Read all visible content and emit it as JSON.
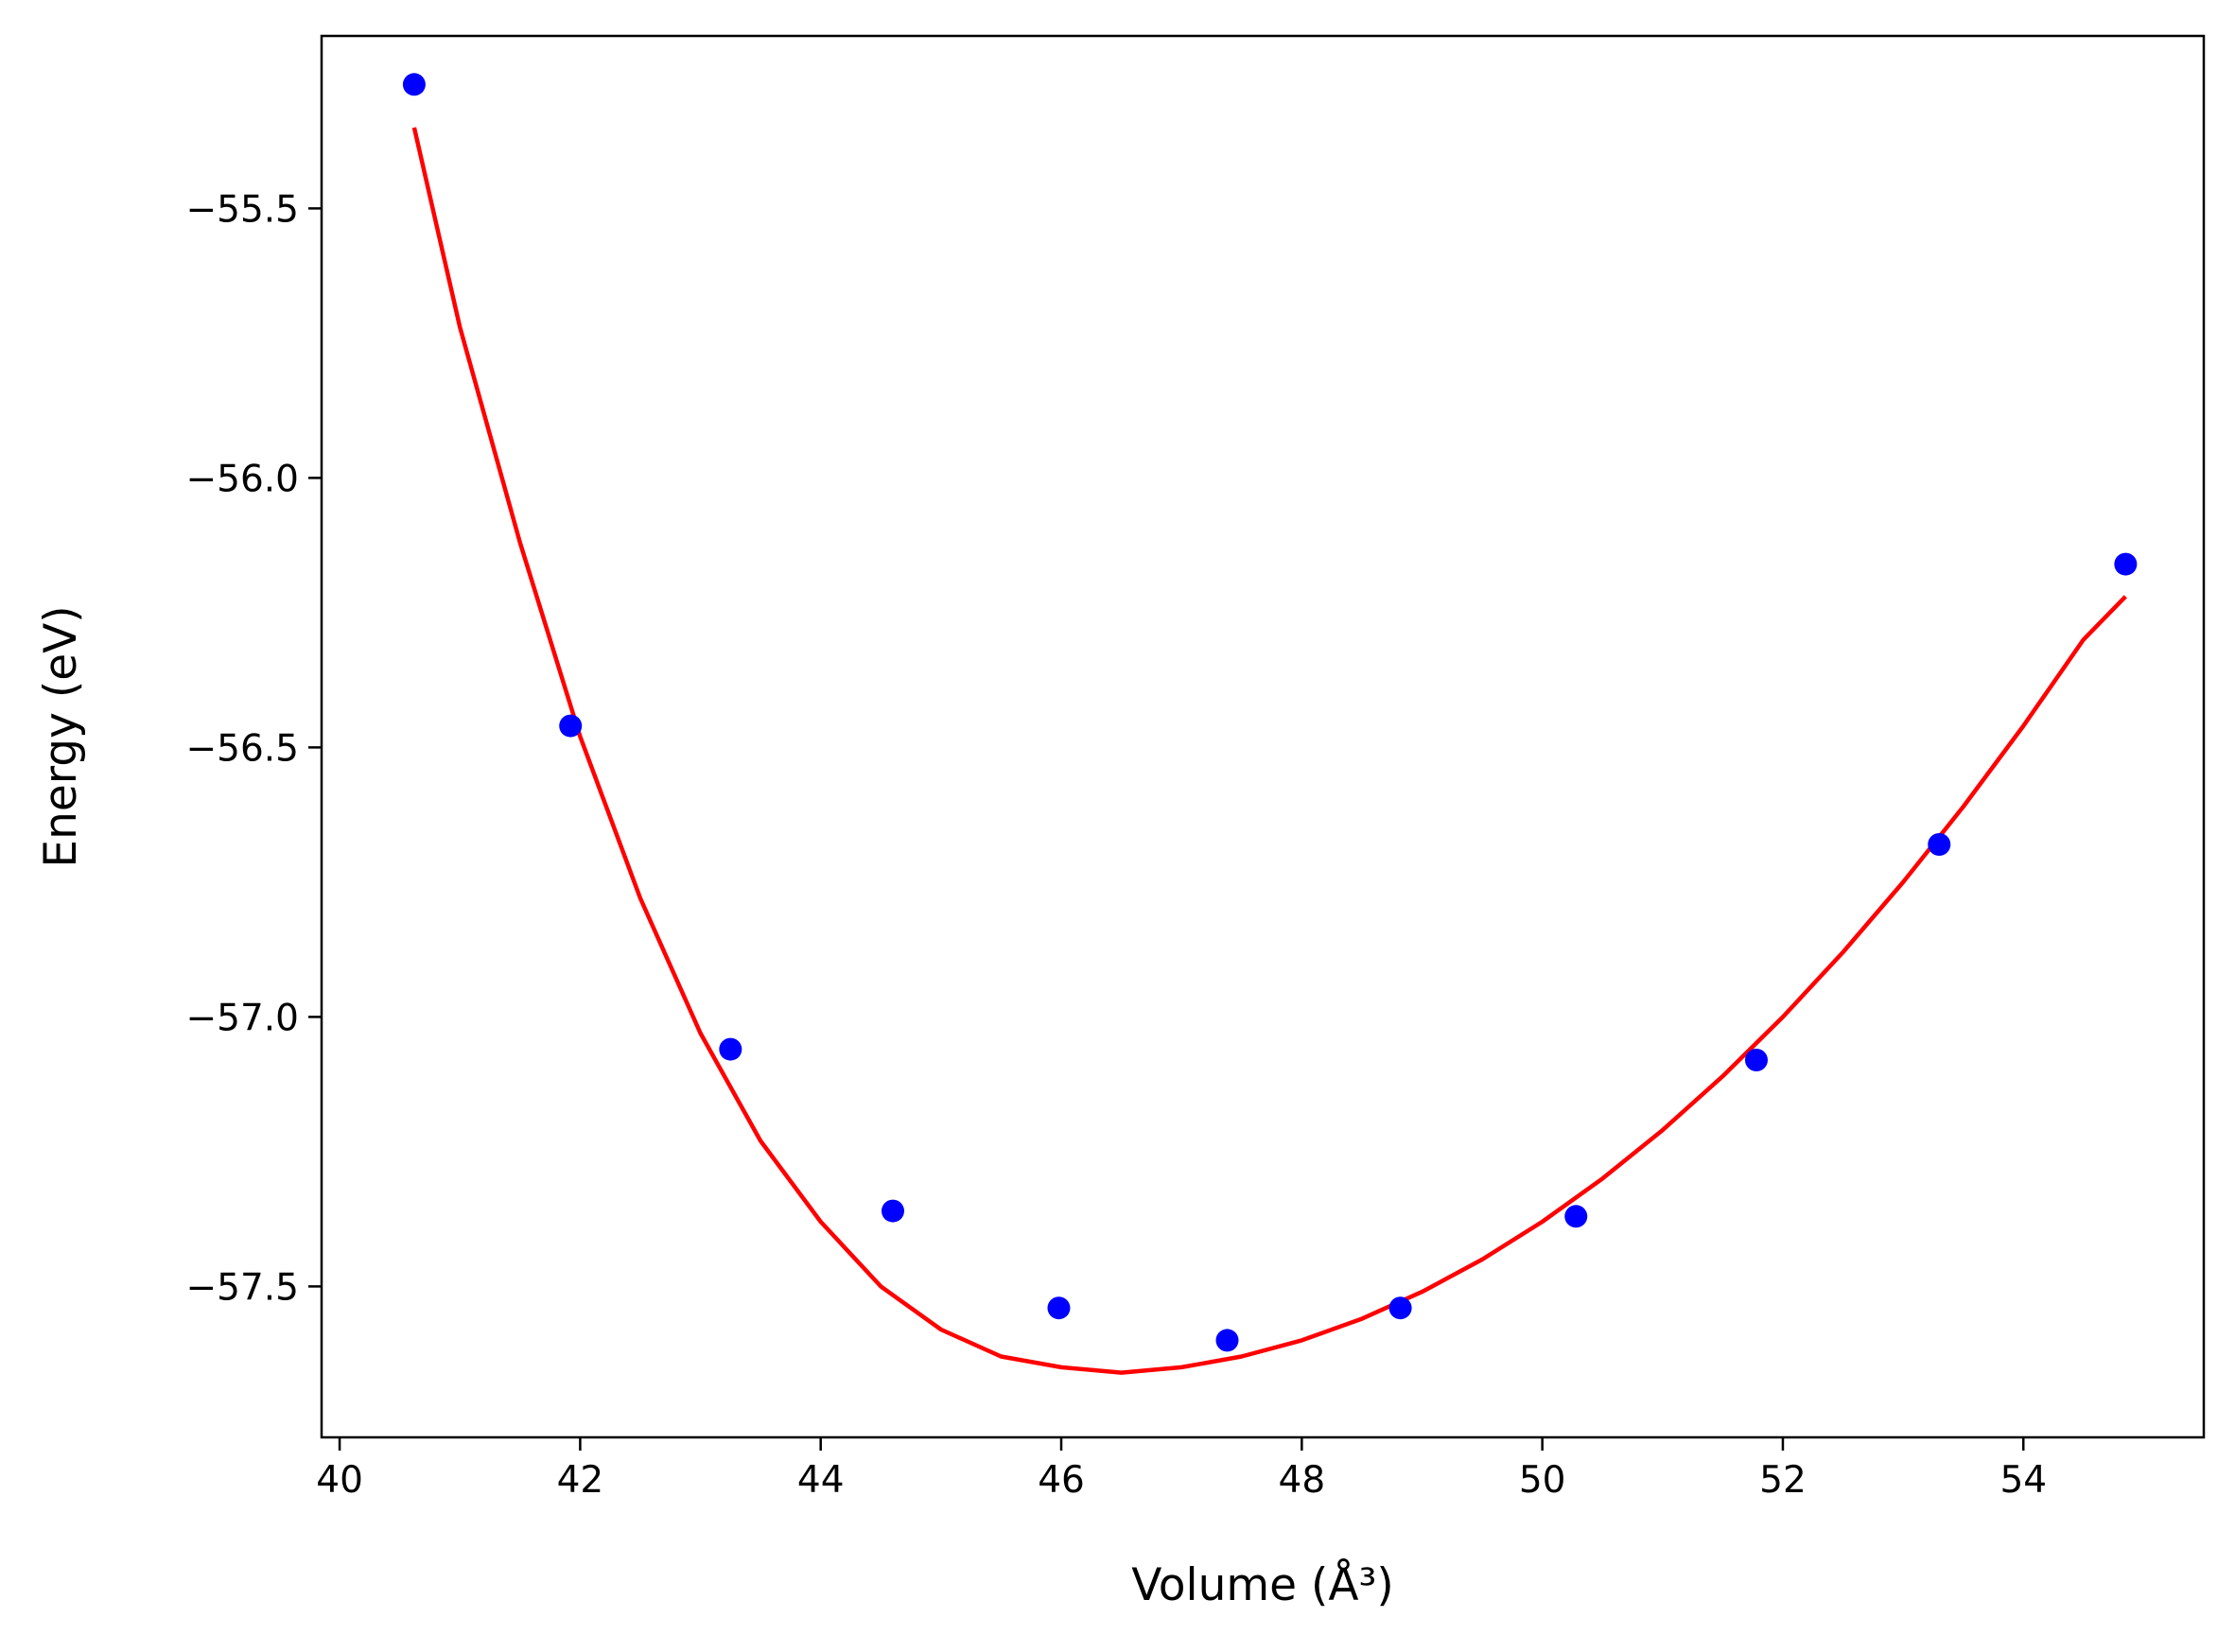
{
  "chart_data": {
    "type": "scatter",
    "title": "",
    "xlabel": "Volume (Å³)",
    "ylabel": "Energy (eV)",
    "xlim": [
      39.85,
      55.5
    ],
    "ylim": [
      -57.78,
      -55.18
    ],
    "xticks": [
      40,
      42,
      44,
      46,
      48,
      50,
      52,
      54
    ],
    "xtick_labels": [
      "40",
      "42",
      "44",
      "46",
      "48",
      "50",
      "52",
      "54"
    ],
    "yticks": [
      -55.5,
      -56.0,
      -56.5,
      -57.0,
      -57.5
    ],
    "ytick_labels": [
      "−55.5",
      "−56.0",
      "−56.5",
      "−57.0",
      "−57.5"
    ],
    "grid": false,
    "series": [
      {
        "kind": "points",
        "color": "#0000ff",
        "x": [
          40.62,
          41.92,
          43.25,
          44.6,
          45.98,
          47.38,
          48.82,
          50.28,
          51.78,
          53.3,
          54.85
        ],
        "y": [
          -55.27,
          -56.46,
          -57.06,
          -57.36,
          -57.54,
          -57.6,
          -57.54,
          -57.37,
          -57.08,
          -56.68,
          -56.16
        ]
      },
      {
        "kind": "fit-line",
        "color": "#ff0000",
        "x": [
          40.62,
          41.0,
          41.5,
          42.0,
          42.5,
          43.0,
          43.5,
          44.0,
          44.5,
          45.0,
          45.5,
          46.0,
          46.5,
          47.0,
          47.5,
          48.0,
          48.5,
          49.0,
          49.5,
          50.0,
          50.5,
          51.0,
          51.5,
          52.0,
          52.5,
          53.0,
          53.5,
          54.0,
          54.5,
          54.85
        ],
        "y": [
          -55.35,
          -55.72,
          -56.12,
          -56.48,
          -56.78,
          -57.03,
          -57.23,
          -57.38,
          -57.5,
          -57.58,
          -57.63,
          -57.65,
          -57.66,
          -57.65,
          -57.63,
          -57.6,
          -57.56,
          -57.51,
          -57.45,
          -57.38,
          -57.3,
          -57.21,
          -57.11,
          -57.0,
          -56.88,
          -56.75,
          -56.61,
          -56.46,
          -56.3,
          -56.22
        ]
      }
    ]
  }
}
